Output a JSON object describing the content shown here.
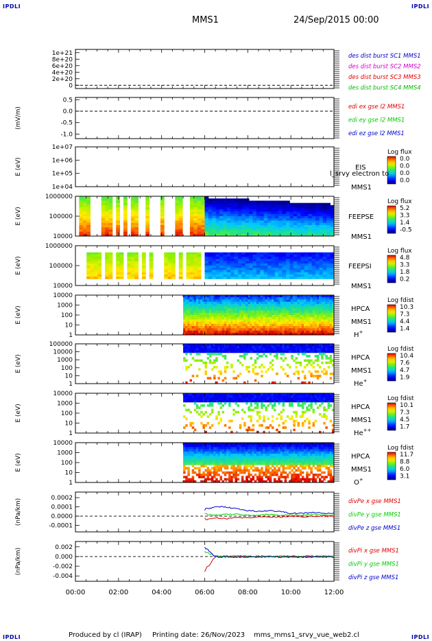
{
  "header": {
    "corner_label": "IPDLI",
    "spacecraft": "MMS1",
    "date": "24/Sep/2015 00:00"
  },
  "footer": {
    "produced_by": "Produced by cl (IRAP)",
    "printing_date": "Printing date: 26/Nov/2023",
    "file_name": "mms_mms1_srvy_vue_web2.cl"
  },
  "colors": {
    "mms1": "#0000cc",
    "mms2": "#cc00cc",
    "mms3": "#dd0000",
    "mms4": "#00bb00",
    "x_comp": "#dd0000",
    "y_comp": "#00cc00",
    "z_comp": "#0000cc"
  },
  "chart_data": [
    {
      "type": "line",
      "panel": "des_dist_burst",
      "y_tick_labels": [
        "1e+21",
        "8e+20",
        "6e+20",
        "4e+20",
        "2e+20",
        "0"
      ],
      "y_ticks": [
        1e+21,
        8e+20,
        6e+20,
        4e+20,
        2e+20,
        0
      ],
      "ylim": [
        -1e+20,
        1.1e+21
      ],
      "reference_line": 0,
      "series": [
        {
          "name": "des dist burst SC1 MMS1",
          "color": "#0000cc",
          "values": []
        },
        {
          "name": "des dist burst SC2 MMS2",
          "color": "#cc00cc",
          "values": []
        },
        {
          "name": "des dist burst SC3 MMS3",
          "color": "#dd0000",
          "values": []
        },
        {
          "name": "des dist burst SC4 MMS4",
          "color": "#00bb00",
          "values": []
        }
      ]
    },
    {
      "type": "line",
      "panel": "edi",
      "ylabel": "(mV/m)",
      "y_tick_labels": [
        "0.5",
        "0.0",
        "-0.5",
        "-1.0"
      ],
      "y_ticks": [
        0.5,
        0.0,
        -0.5,
        -1.0
      ],
      "ylim": [
        -1.2,
        0.6
      ],
      "reference_line": 0,
      "series": [
        {
          "name": "edi ex gse l2 MMS1",
          "color": "#dd0000",
          "values": []
        },
        {
          "name": "edi ey gse l2 MMS1",
          "color": "#00cc00",
          "values": []
        },
        {
          "name": "edi ez gse l2 MMS1",
          "color": "#0000cc",
          "values": []
        }
      ]
    },
    {
      "type": "heatmap",
      "panel": "eis",
      "ylabel": "E (eV)",
      "y_tick_labels": [
        "1e+07",
        "1e+06",
        "1e+05",
        "1e+04"
      ],
      "instrument": [
        "EIS",
        "MMS1"
      ],
      "overlay_text": "l_srvy electron to",
      "colorbar": {
        "title": "Log flux",
        "labels": [
          "0.0",
          "0.0",
          "0.0",
          "0.0"
        ]
      },
      "coverage": {
        "start": "",
        "end": ""
      }
    },
    {
      "type": "heatmap",
      "panel": "feeps_e",
      "ylabel": "E (eV)",
      "y_tick_labels": [
        "1000000",
        "100000",
        "10000"
      ],
      "instrument": [
        "FEEPSE",
        "MMS1"
      ],
      "colorbar": {
        "title": "Log flux",
        "labels": [
          "5.2",
          "3.3",
          "1.4",
          "-0.5"
        ]
      },
      "coverage": {
        "start": "00:00",
        "end": "12:00"
      }
    },
    {
      "type": "heatmap",
      "panel": "feeps_i",
      "ylabel": "E (eV)",
      "y_tick_labels": [
        "1000000",
        "100000",
        "10000"
      ],
      "instrument": [
        "FEEPSI",
        "MMS1"
      ],
      "colorbar": {
        "title": "Log flux",
        "labels": [
          "4.8",
          "3.3",
          "1.8",
          "0.2"
        ]
      },
      "coverage": {
        "start": "00:00",
        "end": "12:00"
      }
    },
    {
      "type": "heatmap",
      "panel": "hpca_h",
      "ylabel": "E (eV)",
      "y_tick_labels": [
        "10000",
        "1000",
        "100",
        "10",
        "1"
      ],
      "instrument": [
        "HPCA",
        "MMS1"
      ],
      "species": "H",
      "charge": "+",
      "colorbar": {
        "title": "Log fdist",
        "labels": [
          "10.3",
          "7.3",
          "4.4",
          "1.4"
        ]
      },
      "coverage": {
        "start": "05:00",
        "end": "12:00"
      }
    },
    {
      "type": "heatmap",
      "panel": "hpca_he",
      "ylabel": "E (eV)",
      "y_tick_labels": [
        "100000",
        "10000",
        "1000",
        "100",
        "10",
        "1"
      ],
      "instrument": [
        "HPCA",
        "MMS1"
      ],
      "species": "He",
      "charge": "+",
      "colorbar": {
        "title": "Log fdist",
        "labels": [
          "10.4",
          "7.6",
          "4.7",
          "1.9"
        ]
      },
      "coverage": {
        "start": "05:00",
        "end": "12:00"
      }
    },
    {
      "type": "heatmap",
      "panel": "hpca_hepp",
      "ylabel": "E (eV)",
      "y_tick_labels": [
        "10000",
        "1000",
        "100",
        "10",
        "1"
      ],
      "instrument": [
        "HPCA",
        "MMS1"
      ],
      "species": "He",
      "charge": "++",
      "colorbar": {
        "title": "Log fdist",
        "labels": [
          "10.1",
          "7.3",
          "4.5",
          "1.7"
        ]
      },
      "coverage": {
        "start": "05:00",
        "end": "12:00"
      }
    },
    {
      "type": "heatmap",
      "panel": "hpca_o",
      "ylabel": "E (eV)",
      "y_tick_labels": [
        "10000",
        "1000",
        "100",
        "10",
        "1"
      ],
      "instrument": [
        "HPCA",
        "MMS1"
      ],
      "species": "O",
      "charge": "+",
      "colorbar": {
        "title": "Log fdist",
        "labels": [
          "11.7",
          "8.8",
          "6.0",
          "3.1"
        ]
      },
      "coverage": {
        "start": "05:00",
        "end": "12:00"
      }
    },
    {
      "type": "line",
      "panel": "divpe",
      "ylabel": "(nPa/km)",
      "y_tick_labels": [
        "0.0002",
        "0.0001",
        "0.0000",
        "-0.0001"
      ],
      "y_ticks": [
        0.0002,
        0.0001,
        0.0,
        -0.0001
      ],
      "ylim": [
        -0.00017,
        0.00026
      ],
      "reference_line": 0,
      "x_hours": [
        6.0,
        6.5,
        7.0,
        7.5,
        8.0,
        8.5,
        9.0,
        9.5,
        10.0,
        10.5,
        11.0,
        11.5,
        12.0
      ],
      "series": [
        {
          "name": "divPe x gse MMS1",
          "color": "#dd0000",
          "values": [
            -3e-05,
            -2e-05,
            -3e-05,
            -1e-05,
            -2e-05,
            -1e-05,
            -1e-05,
            -1e-05,
            0.0,
            -1e-05,
            0.0,
            0.0,
            0.0
          ]
        },
        {
          "name": "divPe y gse MMS1",
          "color": "#00cc00",
          "values": [
            2e-05,
            1e-05,
            2e-05,
            2e-05,
            1e-05,
            1e-05,
            2e-05,
            1e-05,
            1e-05,
            1e-05,
            2e-05,
            1e-05,
            1e-05
          ]
        },
        {
          "name": "divPe z gse MMS1",
          "color": "#0000cc",
          "values": [
            7e-05,
            0.0001,
            0.0001,
            8e-05,
            6e-05,
            5e-05,
            6e-05,
            5e-05,
            3e-05,
            3e-05,
            4e-05,
            3e-05,
            3e-05
          ]
        }
      ]
    },
    {
      "type": "line",
      "panel": "divpi",
      "ylabel": "(nPa/km)",
      "y_tick_labels": [
        "0.002",
        "0.000",
        "-0.002",
        "-0.004"
      ],
      "y_ticks": [
        0.002,
        0.0,
        -0.002,
        -0.004
      ],
      "ylim": [
        -0.0051,
        0.0031
      ],
      "reference_line": 0,
      "x_hours": [
        6.0,
        6.5,
        7.0,
        7.5,
        8.0,
        8.5,
        9.0,
        9.5,
        10.0,
        10.5,
        11.0,
        11.5,
        12.0
      ],
      "series": [
        {
          "name": "divPi x gse MMS1",
          "color": "#dd0000",
          "values": [
            -0.003,
            0.0,
            0.0,
            0.0,
            0.0,
            0.0,
            0.0,
            0.0,
            0.0,
            0.0,
            0.0,
            0.0,
            0.0
          ]
        },
        {
          "name": "divPi y gse MMS1",
          "color": "#00cc00",
          "values": [
            0.001,
            0.0001,
            0.0001,
            0.0001,
            0.0001,
            0.0001,
            0.0001,
            0.0001,
            0.0001,
            0.0001,
            0.0001,
            0.0001,
            0.0001
          ]
        },
        {
          "name": "divPi z gse MMS1",
          "color": "#0000cc",
          "values": [
            0.002,
            -0.0001,
            -0.0001,
            -0.0001,
            -0.0001,
            -0.0001,
            -0.0001,
            -0.0001,
            -0.0001,
            -0.0001,
            -0.0001,
            -0.0001,
            -0.0001
          ]
        }
      ]
    }
  ],
  "x_axis": {
    "tick_labels": [
      "00:00",
      "02:00",
      "04:00",
      "06:00",
      "08:00",
      "10:00",
      "12:00"
    ],
    "range_hours": [
      0,
      12
    ]
  }
}
